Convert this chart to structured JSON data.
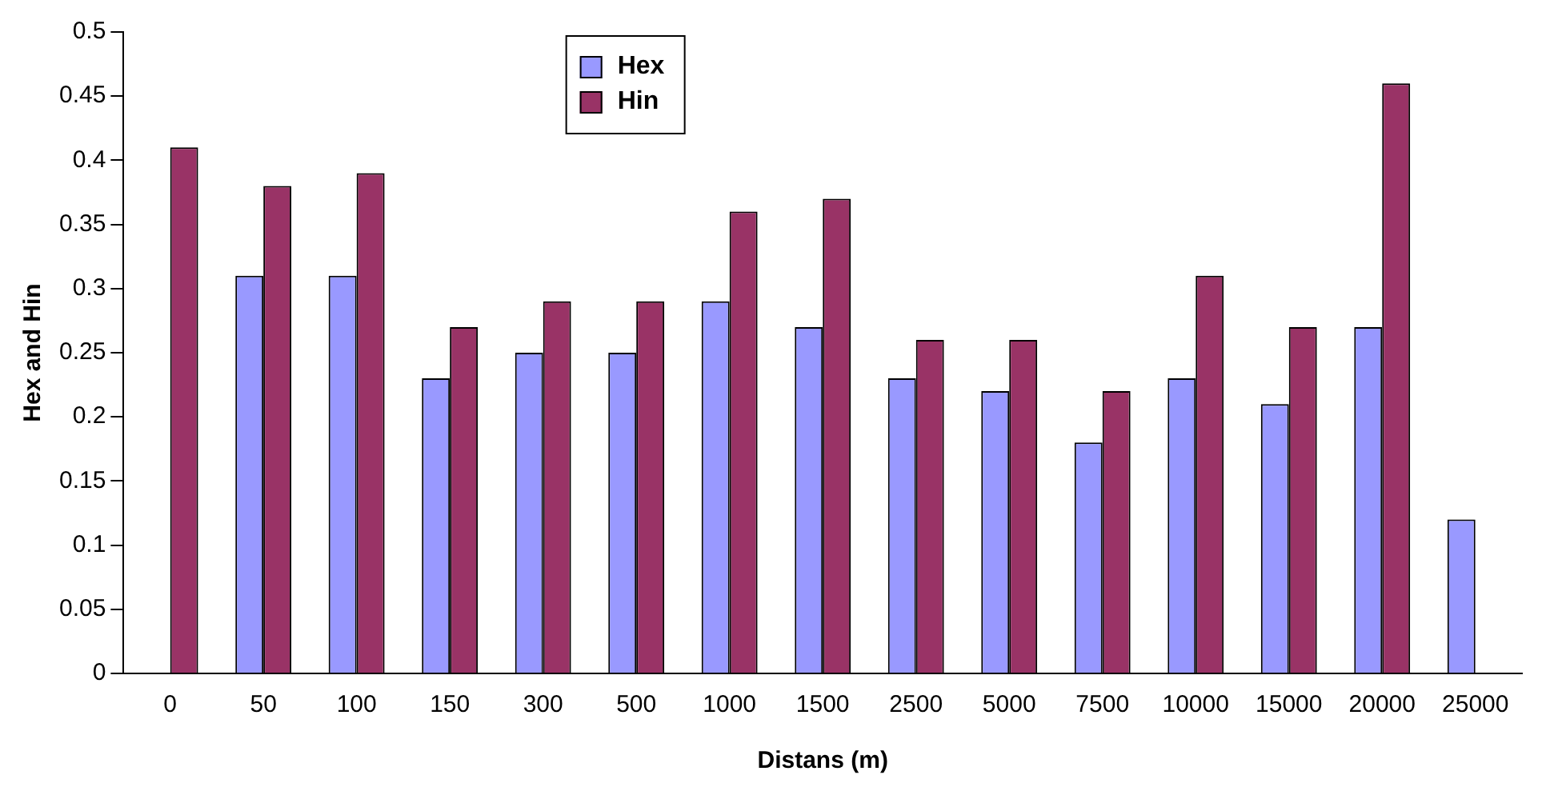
{
  "chart_data": {
    "type": "bar",
    "xlabel": "Distans (m)",
    "ylabel": "Hex and Hin",
    "categories": [
      "0",
      "50",
      "100",
      "150",
      "300",
      "500",
      "1000",
      "1500",
      "2500",
      "5000",
      "7500",
      "10000",
      "15000",
      "20000",
      "25000"
    ],
    "series": [
      {
        "name": "Hex",
        "color": "#9999ff",
        "values": [
          null,
          0.31,
          0.31,
          0.23,
          0.25,
          0.25,
          0.29,
          0.27,
          0.23,
          0.22,
          0.18,
          0.23,
          0.21,
          0.27,
          0.12
        ]
      },
      {
        "name": "Hin",
        "color": "#993366",
        "values": [
          0.41,
          0.38,
          0.39,
          0.27,
          0.29,
          0.29,
          0.36,
          0.37,
          0.26,
          0.26,
          0.22,
          0.31,
          0.27,
          0.46,
          null
        ]
      }
    ],
    "ylim": [
      0,
      0.5
    ],
    "yticks": [
      0,
      0.05,
      0.1,
      0.15,
      0.2,
      0.25,
      0.3,
      0.35,
      0.4,
      0.45,
      0.5
    ],
    "grid": false,
    "legend": "top"
  }
}
